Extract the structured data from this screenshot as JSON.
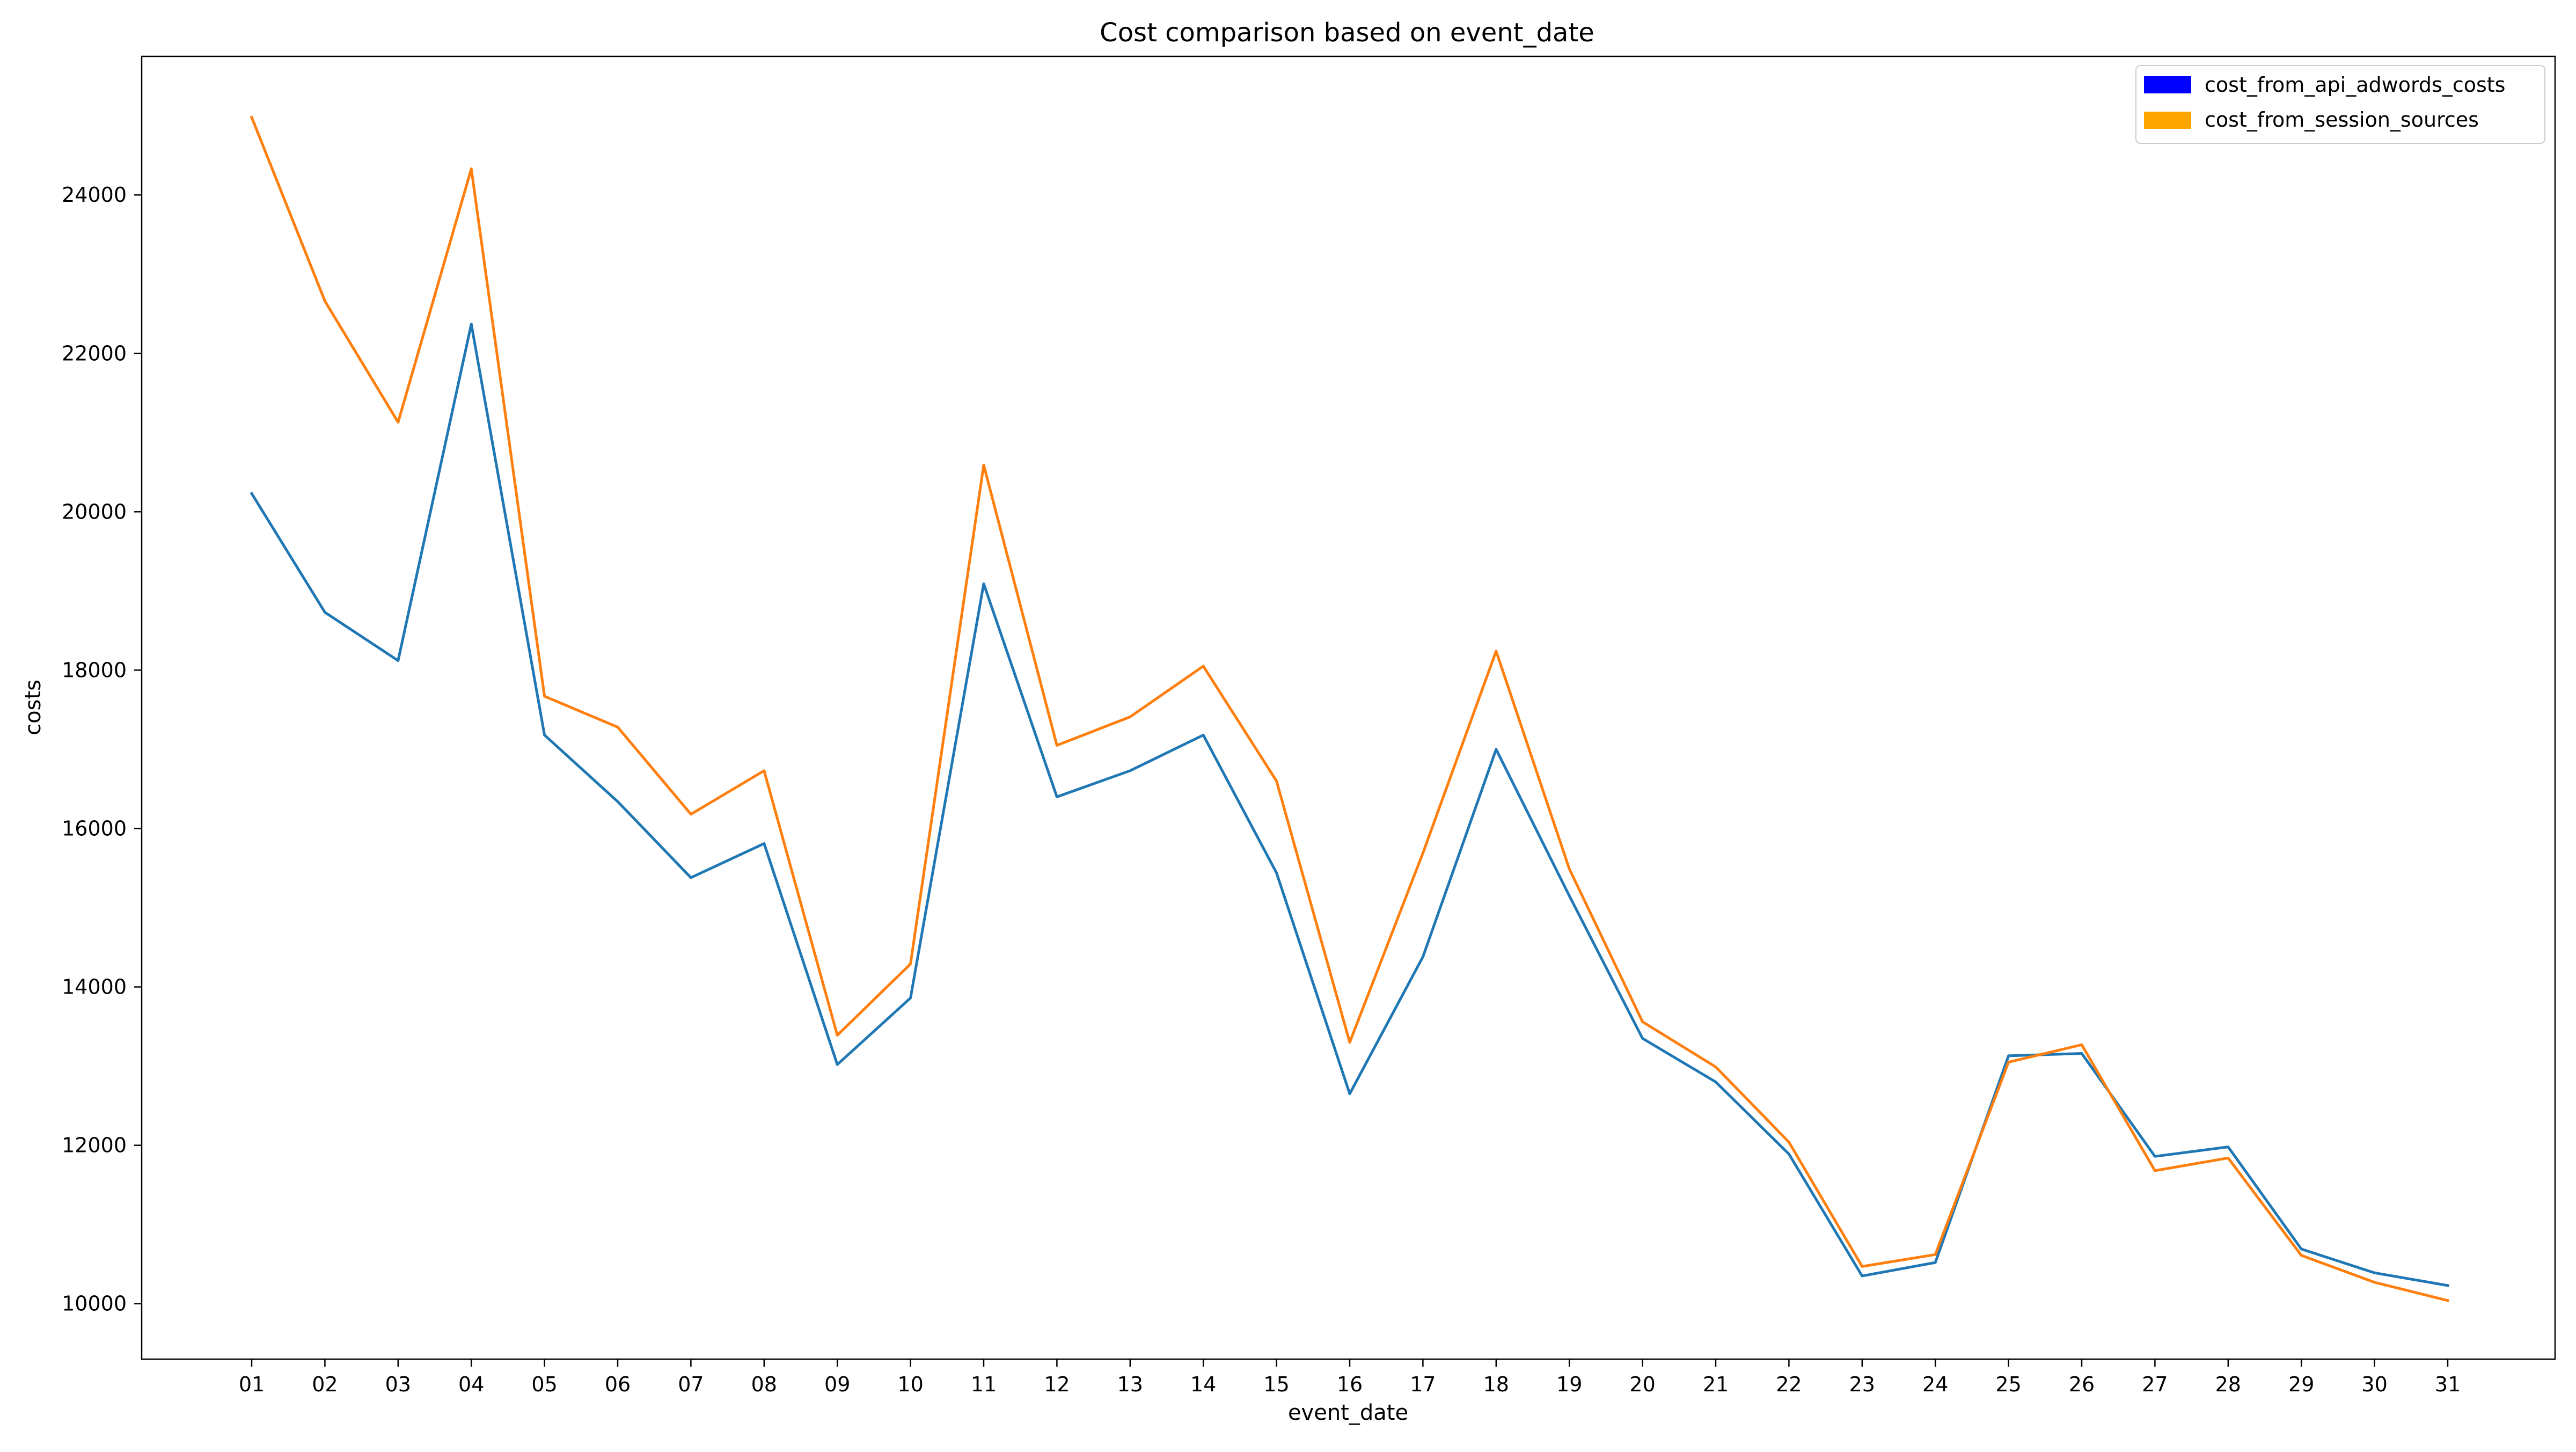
{
  "chart_data": {
    "type": "line",
    "title": "Cost comparison based on event_date",
    "xlabel": "event_date",
    "ylabel": "costs",
    "categories": [
      "01",
      "02",
      "03",
      "04",
      "05",
      "06",
      "07",
      "08",
      "09",
      "10",
      "11",
      "12",
      "13",
      "14",
      "15",
      "16",
      "17",
      "18",
      "19",
      "20",
      "21",
      "22",
      "23",
      "24",
      "25",
      "26",
      "27",
      "28",
      "29",
      "30",
      "31"
    ],
    "ylim": [
      9300,
      25750
    ],
    "yticks": [
      10000,
      12000,
      14000,
      16000,
      18000,
      20000,
      22000,
      24000
    ],
    "grid": false,
    "legend_position": "top-right",
    "series": [
      {
        "name": "cost_from_api_adwords_costs",
        "color": "#1f77b4",
        "legend_color": "#0000ff",
        "values": [
          20230,
          18730,
          18120,
          22370,
          17180,
          16340,
          15380,
          15810,
          13020,
          13860,
          19090,
          16400,
          16730,
          17180,
          15440,
          12650,
          14380,
          17000,
          15150,
          13350,
          12800,
          11890,
          10350,
          10520,
          13130,
          13160,
          11860,
          11980,
          10690,
          10390,
          10230
        ]
      },
      {
        "name": "cost_from_session_sources",
        "color": "#ff7f0e",
        "legend_color": "#ffa500",
        "values": [
          24980,
          22660,
          21130,
          24330,
          17670,
          17280,
          16180,
          16730,
          13390,
          14290,
          20590,
          17050,
          17410,
          18050,
          16600,
          13300,
          15690,
          18240,
          15490,
          13560,
          12990,
          12040,
          10470,
          10620,
          13050,
          13270,
          11680,
          11840,
          10610,
          10270,
          10040
        ]
      }
    ]
  }
}
